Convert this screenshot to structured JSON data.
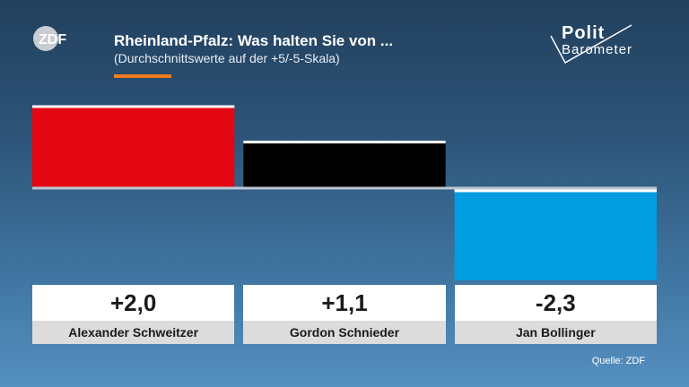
{
  "header": {
    "logo_text": "ZDF",
    "title": "Rheinland-Pfalz: Was halten Sie von ...",
    "subtitle": "(Durchschnittswerte auf der +5/-5-Skala)",
    "brand_line1": "Polit",
    "brand_line2": "Barometer"
  },
  "source": "Quelle: ZDF",
  "colors": {
    "accent": "#f07c1e",
    "baseline": "#b9c7d3"
  },
  "chart_data": {
    "type": "bar",
    "title": "Rheinland-Pfalz: Was halten Sie von ...",
    "subtitle": "(Durchschnittswerte auf der +5/-5-Skala)",
    "categories": [
      "Alexander Schweitzer",
      "Gordon Schnieder",
      "Jan Bollinger"
    ],
    "values": [
      2.0,
      1.1,
      -2.3
    ],
    "value_labels": [
      "+2,0",
      "+1,1",
      "-2,3"
    ],
    "colors": [
      "#e30613",
      "#000000",
      "#009ee0"
    ],
    "ylim": [
      -5,
      5
    ],
    "grid": false,
    "legend": "none"
  }
}
